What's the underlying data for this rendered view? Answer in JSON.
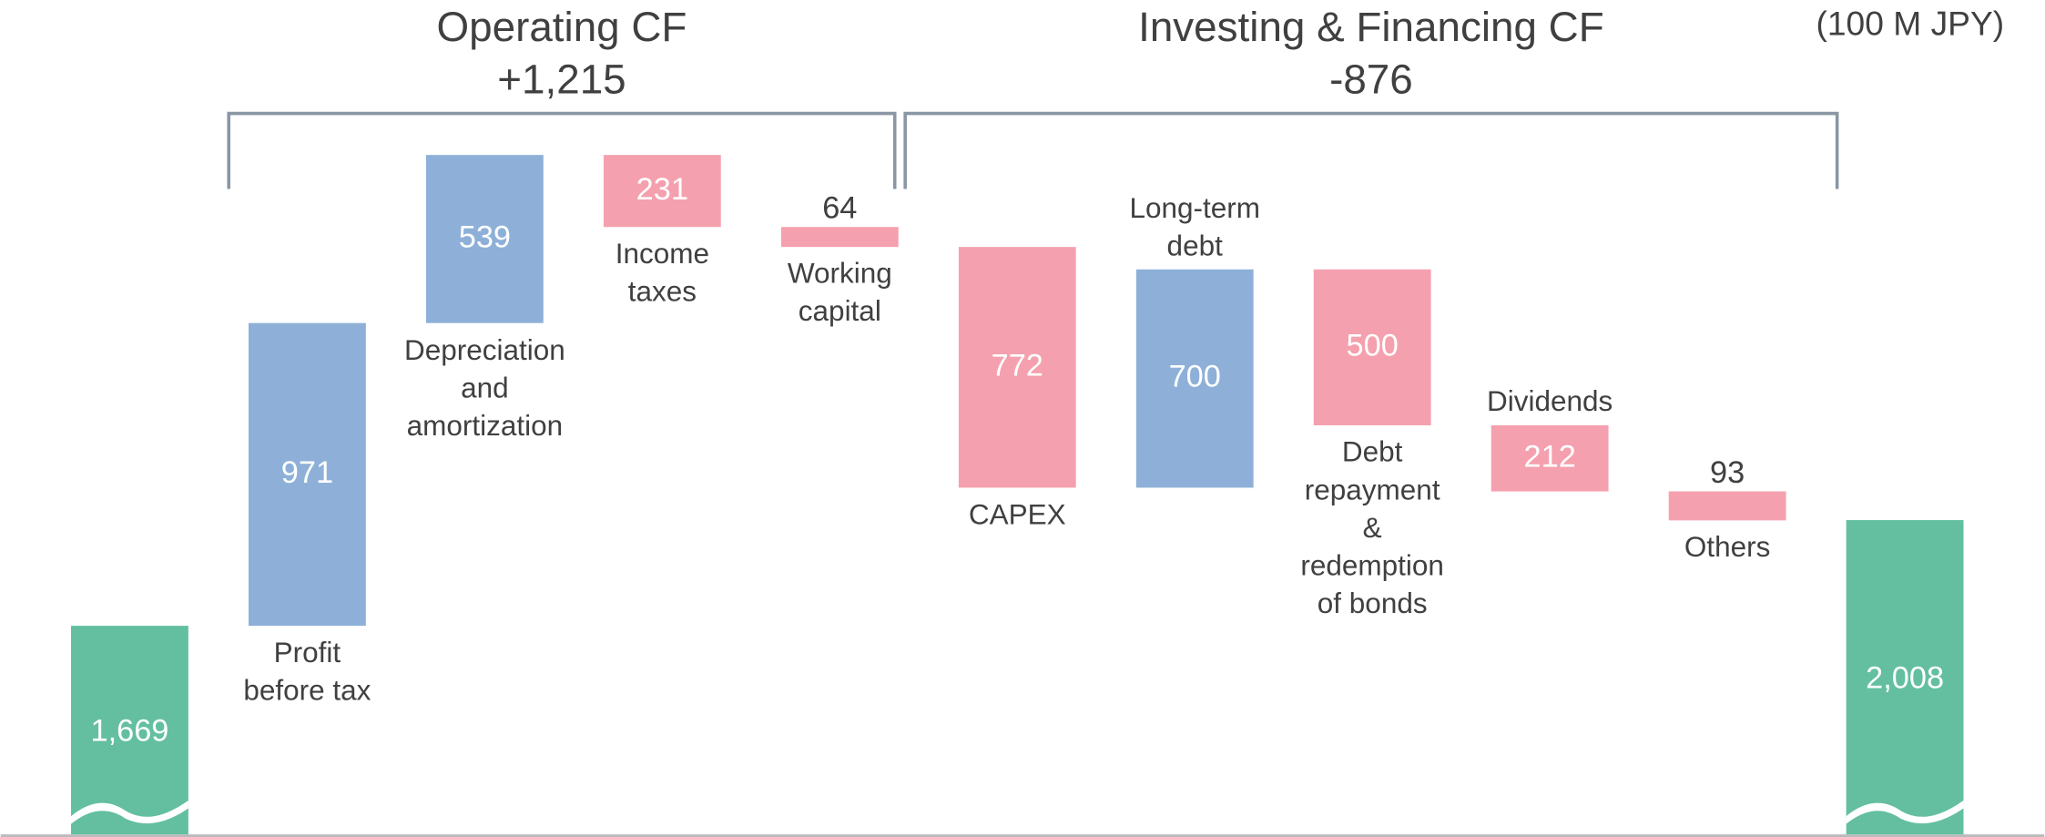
{
  "chart_data": {
    "type": "waterfall",
    "unit_label": "(100 M JPY)",
    "groups": [
      {
        "label": "Operating CF",
        "total": "+1,215"
      },
      {
        "label": "Investing & Financing CF",
        "total": "-876"
      }
    ],
    "categories": [
      null,
      "Profit\nbefore tax",
      "Depreciation\nand\namortization",
      "Income\ntaxes",
      "Working\ncapital",
      "CAPEX",
      "Long-term\ndebt",
      "Debt\nrepayment\n&\nredemption\nof bonds",
      "Dividends",
      "Others",
      null
    ],
    "values": [
      1669,
      971,
      539,
      -231,
      -64,
      -772,
      700,
      -500,
      -212,
      -93,
      2008
    ],
    "value_labels": [
      "1,669",
      "971",
      "539",
      "231",
      "64",
      "772",
      "700",
      "500",
      "212",
      "93",
      "2,008"
    ],
    "totals": [
      true,
      false,
      false,
      false,
      false,
      false,
      false,
      false,
      false,
      false,
      true
    ],
    "color_total": "#63bfa0",
    "color_increase": "#8eb0d8",
    "color_decrease": "#f5a0ae",
    "ylim": [
      1000,
      3676
    ],
    "grid": false
  }
}
